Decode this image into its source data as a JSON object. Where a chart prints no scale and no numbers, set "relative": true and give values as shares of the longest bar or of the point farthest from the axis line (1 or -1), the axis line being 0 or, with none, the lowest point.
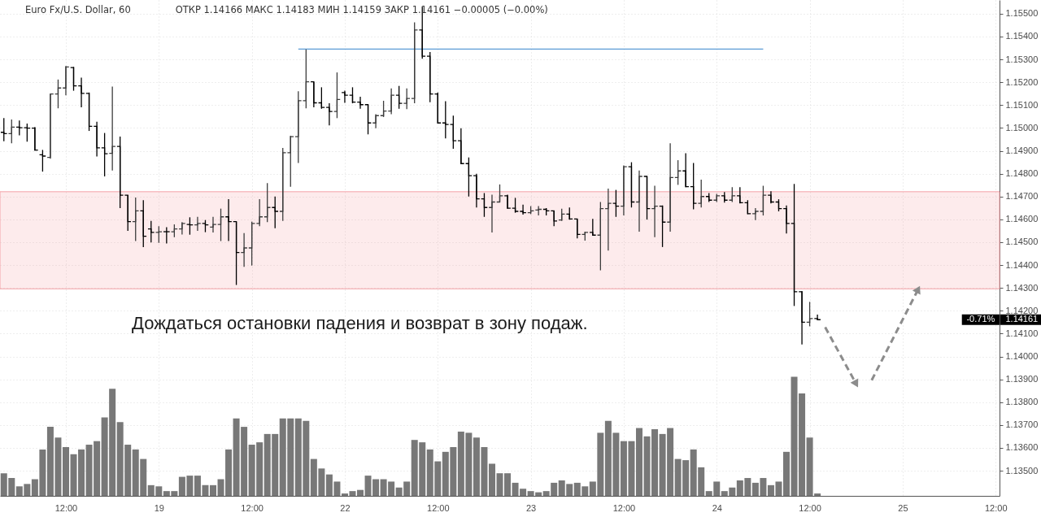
{
  "chart_data": [
    {
      "type": "candlestick",
      "title": "Euro Fx/U.S. Dollar, 60",
      "subtitle": "ОТКР 1.14166 МАКС 1.14183 МИН 1.14159 ЗАКР 1.14161 −0.00005 (−0.00%)",
      "categories": [
        null,
        null,
        null,
        null,
        null,
        null,
        null,
        null,
        "12:00",
        null,
        null,
        null,
        null,
        null,
        null,
        null,
        null,
        null,
        null,
        null,
        "19",
        null,
        null,
        null,
        null,
        null,
        null,
        null,
        null,
        null,
        null,
        null,
        "12:00",
        null,
        null,
        null,
        null,
        null,
        null,
        null,
        null,
        null,
        null,
        null,
        "22",
        null,
        null,
        null,
        null,
        null,
        null,
        null,
        null,
        null,
        null,
        null,
        "12:00",
        null,
        null,
        null,
        null,
        null,
        null,
        null,
        null,
        null,
        null,
        null,
        "23",
        null,
        null,
        null,
        null,
        null,
        null,
        null,
        null,
        null,
        null,
        null,
        "12:00",
        null,
        null,
        null,
        null,
        null,
        null,
        null,
        null,
        null,
        null,
        null,
        "24",
        null,
        null,
        null,
        null,
        null,
        null,
        null,
        null,
        null,
        null,
        null,
        "12:00",
        null,
        null,
        null,
        null,
        null,
        null,
        null,
        null,
        null,
        null,
        null,
        "25",
        null,
        null,
        null,
        null,
        null,
        null,
        null,
        null,
        null,
        null,
        null,
        "12:00"
      ],
      "ohlc": [
        [
          1.14981,
          1.15043,
          1.14942,
          1.14975
        ],
        [
          1.14975,
          1.15037,
          1.14933,
          1.15004
        ],
        [
          1.15004,
          1.15033,
          1.14968,
          1.15001
        ],
        [
          1.15001,
          1.15019,
          1.1494,
          1.14999
        ],
        [
          1.14999,
          1.15004,
          1.14901,
          1.14903
        ],
        [
          1.14883,
          1.14904,
          1.14809,
          1.14877
        ],
        [
          1.14871,
          1.15149,
          1.14865,
          1.15149
        ],
        [
          1.15149,
          1.15212,
          1.15086,
          1.15175
        ],
        [
          1.15175,
          1.15271,
          1.15143,
          1.15267
        ],
        [
          1.15264,
          1.15267,
          1.15163,
          1.15184
        ],
        [
          1.15184,
          1.1522,
          1.1509,
          1.15151
        ],
        [
          1.15151,
          1.15155,
          1.14987,
          1.15007
        ],
        [
          1.15007,
          1.15027,
          1.14875,
          1.14913
        ],
        [
          1.14913,
          1.14978,
          1.14788,
          1.14887
        ],
        [
          1.14889,
          1.15181,
          1.14814,
          1.14919
        ],
        [
          1.14919,
          1.14962,
          1.14649,
          1.14706
        ],
        [
          1.14706,
          1.14706,
          1.1455,
          1.1459
        ],
        [
          1.1459,
          1.14696,
          1.14505,
          1.14637
        ],
        [
          1.14637,
          1.14684,
          1.14479,
          1.14526
        ],
        [
          1.14558,
          1.14593,
          1.14499,
          1.14543
        ],
        [
          1.14543,
          1.1457,
          1.14497,
          1.14546
        ],
        [
          1.14546,
          1.14566,
          1.14495,
          1.14546
        ],
        [
          1.14546,
          1.14578,
          1.14522,
          1.14558
        ],
        [
          1.14558,
          1.14588,
          1.14534,
          1.14582
        ],
        [
          1.14578,
          1.14609,
          1.14533,
          1.14576
        ],
        [
          1.14576,
          1.14611,
          1.1455,
          1.14582
        ],
        [
          1.14582,
          1.14597,
          1.14544,
          1.14576
        ],
        [
          1.14566,
          1.14611,
          1.14543,
          1.14578
        ],
        [
          1.14578,
          1.14647,
          1.14505,
          1.14611
        ],
        [
          1.14611,
          1.14688,
          1.14505,
          1.1459
        ],
        [
          1.1459,
          1.1459,
          1.14313,
          1.14455
        ],
        [
          1.14455,
          1.1454,
          1.14392,
          1.14475
        ],
        [
          1.14475,
          1.1459,
          1.14398,
          1.14582
        ],
        [
          1.14582,
          1.14688,
          1.1457,
          1.14611
        ],
        [
          1.14611,
          1.14759,
          1.14588,
          1.14652
        ],
        [
          1.14652,
          1.147,
          1.14561,
          1.14635
        ],
        [
          1.14635,
          1.14913,
          1.14593,
          1.14892
        ],
        [
          1.14892,
          1.14966,
          1.14743,
          1.14962
        ],
        [
          1.14962,
          1.15161,
          1.14847,
          1.15119
        ],
        [
          1.15119,
          1.15344,
          1.15086,
          1.15202
        ],
        [
          1.15202,
          1.15202,
          1.1509,
          1.1511
        ],
        [
          1.1511,
          1.15178,
          1.15084,
          1.1509
        ],
        [
          1.1509,
          1.15108,
          1.15011,
          1.15072
        ],
        [
          1.15072,
          1.15243,
          1.15043,
          1.15125
        ],
        [
          1.15155,
          1.15163,
          1.1511,
          1.15143
        ],
        [
          1.15143,
          1.15178,
          1.15108,
          1.15113
        ],
        [
          1.15113,
          1.15137,
          1.15084,
          1.15102
        ],
        [
          1.15102,
          1.15102,
          1.14972,
          1.15022
        ],
        [
          1.15022,
          1.1506,
          1.14999,
          1.15054
        ],
        [
          1.15054,
          1.15119,
          1.15048,
          1.15074
        ],
        [
          1.15074,
          1.15173,
          1.1506,
          1.15143
        ],
        [
          1.15143,
          1.15184,
          1.15084,
          1.15108
        ],
        [
          1.15108,
          1.15173,
          1.15082,
          1.15129
        ],
        [
          1.15129,
          1.15462,
          1.15108,
          1.15429
        ],
        [
          1.15429,
          1.15531,
          1.15303,
          1.15314
        ],
        [
          1.15314,
          1.15332,
          1.15113,
          1.15149
        ],
        [
          1.15149,
          1.15155,
          1.15019,
          1.15022
        ],
        [
          1.15022,
          1.15117,
          1.14954,
          1.15015
        ],
        [
          1.15015,
          1.15054,
          1.14909,
          1.14944
        ],
        [
          1.14944,
          1.14999,
          1.14842,
          1.14844
        ],
        [
          1.14844,
          1.14871,
          1.147,
          1.14791
        ],
        [
          1.14791,
          1.148,
          1.14652,
          1.1469
        ],
        [
          1.1469,
          1.14715,
          1.14611,
          1.14652
        ],
        [
          1.14652,
          1.14708,
          1.14543,
          1.14676
        ],
        [
          1.14676,
          1.14753,
          1.14676,
          1.14703
        ],
        [
          1.14703,
          1.14708,
          1.14647,
          1.14649
        ],
        [
          1.14649,
          1.14694,
          1.14629,
          1.14635
        ],
        [
          1.14635,
          1.14664,
          1.14621,
          1.14629
        ],
        [
          1.14629,
          1.14658,
          1.14623,
          1.14637
        ],
        [
          1.14641,
          1.14658,
          1.14617,
          1.14644
        ],
        [
          1.14644,
          1.14649,
          1.14617,
          1.14637
        ],
        [
          1.14637,
          1.14637,
          1.1457,
          1.14593
        ],
        [
          1.14597,
          1.14647,
          1.14593,
          1.14623
        ],
        [
          1.14623,
          1.14652,
          1.14599,
          1.14602
        ],
        [
          1.14602,
          1.14602,
          1.14517,
          1.14534
        ],
        [
          1.14534,
          1.14546,
          1.14507,
          1.14543
        ],
        [
          1.14543,
          1.14602,
          1.14528,
          1.14531
        ],
        [
          1.14531,
          1.14676,
          1.14377,
          1.14647
        ],
        [
          1.14647,
          1.14735,
          1.14463,
          1.1467
        ],
        [
          1.1467,
          1.14729,
          1.14611,
          1.14658
        ],
        [
          1.14658,
          1.14836,
          1.14617,
          1.1483
        ],
        [
          1.1483,
          1.1485,
          1.14652,
          1.14676
        ],
        [
          1.14676,
          1.14814,
          1.14546,
          1.14788
        ],
        [
          1.14788,
          1.14788,
          1.14599,
          1.14647
        ],
        [
          1.14647,
          1.14747,
          1.14522,
          1.14658
        ],
        [
          1.14658,
          1.14661,
          1.14479,
          1.14588
        ],
        [
          1.14588,
          1.14933,
          1.14546,
          1.14783
        ],
        [
          1.14783,
          1.14859,
          1.14751,
          1.14812
        ],
        [
          1.14812,
          1.14889,
          1.14741,
          1.14743
        ],
        [
          1.14743,
          1.14847,
          1.14644,
          1.1467
        ],
        [
          1.1467,
          1.14774,
          1.14652,
          1.147
        ],
        [
          1.147,
          1.14715,
          1.14676,
          1.14684
        ],
        [
          1.14684,
          1.14712,
          1.14676,
          1.14703
        ],
        [
          1.14703,
          1.1472,
          1.14673,
          1.14684
        ],
        [
          1.14684,
          1.14741,
          1.14676,
          1.14703
        ],
        [
          1.14703,
          1.14741,
          1.1467,
          1.14673
        ],
        [
          1.14673,
          1.14684,
          1.14623,
          1.14625
        ],
        [
          1.14625,
          1.14649,
          1.14597,
          1.14635
        ],
        [
          1.14635,
          1.14747,
          1.14617,
          1.14706
        ],
        [
          1.14706,
          1.14723,
          1.1467,
          1.14676
        ],
        [
          1.14676,
          1.14688,
          1.14635,
          1.14647
        ],
        [
          1.14647,
          1.14661,
          1.14538,
          1.14582
        ],
        [
          1.14582,
          1.14755,
          1.14221,
          1.14283
        ],
        [
          1.14283,
          1.14286,
          1.14053,
          1.1415
        ],
        [
          1.1415,
          1.14239,
          1.14132,
          1.14166
        ],
        [
          1.14166,
          1.14183,
          1.14159,
          1.14161
        ],
        null,
        null,
        null,
        null,
        null,
        null,
        null,
        null,
        null,
        null,
        null,
        null,
        null,
        null,
        null,
        null,
        null,
        null,
        null,
        null,
        null,
        null,
        null
      ],
      "colors": [
        "#000000",
        "#3d3d3d",
        "#000000",
        "#000000",
        "#000000",
        "#000000",
        "#3d3d3d",
        "#3d3d3d",
        "#3d3d3d",
        "#000000",
        "#000000",
        "#000000",
        "#000000",
        "#000000",
        "#3d3d3d",
        "#000000",
        "#000000",
        "#3d3d3d",
        "#000000",
        "#000000",
        "#3d3d3d",
        "#000000",
        "#3d3d3d",
        "#3d3d3d",
        "#000000",
        "#3d3d3d",
        "#000000",
        "#3d3d3d",
        "#3d3d3d",
        "#000000",
        "#000000",
        "#3d3d3d",
        "#3d3d3d",
        "#3d3d3d",
        "#3d3d3d",
        "#000000",
        "#3d3d3d",
        "#3d3d3d",
        "#3d3d3d",
        "#3d3d3d",
        "#000000",
        "#000000",
        "#000000",
        "#3d3d3d",
        "#000000",
        "#000000",
        "#000000",
        "#000000",
        "#3d3d3d",
        "#3d3d3d",
        "#3d3d3d",
        "#000000",
        "#3d3d3d",
        "#3d3d3d",
        "#000000",
        "#000000",
        "#000000",
        "#000000",
        "#000000",
        "#000000",
        "#000000",
        "#000000",
        "#000000",
        "#3d3d3d",
        "#3d3d3d",
        "#000000",
        "#000000",
        "#000000",
        "#3d3d3d",
        "#3d3d3d",
        "#000000",
        "#000000",
        "#3d3d3d",
        "#000000",
        "#000000",
        "#3d3d3d",
        "#000000",
        "#3d3d3d",
        "#3d3d3d",
        "#000000",
        "#3d3d3d",
        "#000000",
        "#3d3d3d",
        "#000000",
        "#3d3d3d",
        "#000000",
        "#3d3d3d",
        "#3d3d3d",
        "#000000",
        "#000000",
        "#3d3d3d",
        "#000000",
        "#3d3d3d",
        "#000000",
        "#3d3d3d",
        "#000000",
        "#000000",
        "#3d3d3d",
        "#3d3d3d",
        "#000000",
        "#000000",
        "#000000",
        "#000000",
        "#000000",
        "#3d3d3d",
        "#000000",
        null,
        null,
        null,
        null,
        null,
        null,
        null,
        null,
        null,
        null,
        null,
        null,
        null,
        null,
        null,
        null,
        null,
        null,
        null,
        null,
        null,
        null,
        null
      ],
      "series": [
        {
          "type": "line",
          "color": "#5b9bd5",
          "values": [
            null,
            null,
            null,
            null,
            null,
            null,
            null,
            null,
            null,
            null,
            null,
            null,
            null,
            null,
            null,
            null,
            null,
            null,
            null,
            null,
            null,
            null,
            null,
            null,
            null,
            null,
            null,
            null,
            null,
            null,
            null,
            null,
            null,
            null,
            null,
            null,
            null,
            null,
            1.15345,
            null,
            null,
            null,
            null,
            null,
            null,
            null,
            null,
            null,
            null,
            null,
            null,
            null,
            null,
            null,
            null,
            null,
            null,
            null,
            null,
            null,
            null,
            null,
            null,
            null,
            null,
            null,
            null,
            null,
            null,
            null,
            null,
            null,
            null,
            null,
            null,
            null,
            null,
            null,
            null,
            null,
            null,
            null,
            null,
            null,
            null,
            null,
            null,
            null,
            null,
            null,
            null,
            null,
            null,
            null,
            null,
            null,
            null,
            null,
            1.15345,
            null,
            null,
            null,
            null,
            null,
            null,
            null,
            null,
            null,
            null,
            null,
            null,
            null,
            null,
            null,
            null,
            null,
            null,
            null,
            null,
            null,
            null,
            null,
            null,
            null,
            null,
            null,
            null,
            null,
            null
          ]
        },
        {
          "type": "line",
          "color": "#8c8c8c",
          "line_style": "dashed",
          "marker": "triangle",
          "values": [
            null,
            null,
            null,
            null,
            null,
            null,
            null,
            null,
            null,
            null,
            null,
            null,
            null,
            null,
            null,
            null,
            null,
            null,
            null,
            null,
            null,
            null,
            null,
            null,
            null,
            null,
            null,
            null,
            null,
            null,
            null,
            null,
            null,
            null,
            null,
            null,
            null,
            null,
            null,
            null,
            null,
            null,
            null,
            null,
            null,
            null,
            null,
            null,
            null,
            null,
            null,
            null,
            null,
            null,
            null,
            null,
            null,
            null,
            null,
            null,
            null,
            null,
            null,
            null,
            null,
            null,
            null,
            null,
            null,
            null,
            null,
            null,
            null,
            null,
            null,
            null,
            null,
            null,
            null,
            null,
            null,
            null,
            null,
            null,
            null,
            null,
            null,
            null,
            null,
            null,
            null,
            null,
            null,
            null,
            null,
            null,
            null,
            null,
            null,
            null,
            null,
            null,
            null,
            null,
            null,
            null,
            1.14128,
            null,
            null,
            null,
            1.1388,
            null,
            null,
            null,
            null,
            null,
            null,
            null,
            null,
            null,
            null,
            null,
            null,
            null,
            null,
            null,
            null,
            null,
            null
          ]
        },
        {
          "type": "line",
          "color": "#8c8c8c",
          "line_style": "dashed",
          "marker": "triangle",
          "values": [
            null,
            null,
            null,
            null,
            null,
            null,
            null,
            null,
            null,
            null,
            null,
            null,
            null,
            null,
            null,
            null,
            null,
            null,
            null,
            null,
            null,
            null,
            null,
            null,
            null,
            null,
            null,
            null,
            null,
            null,
            null,
            null,
            null,
            null,
            null,
            null,
            null,
            null,
            null,
            null,
            null,
            null,
            null,
            null,
            null,
            null,
            null,
            null,
            null,
            null,
            null,
            null,
            null,
            null,
            null,
            null,
            null,
            null,
            null,
            null,
            null,
            null,
            null,
            null,
            null,
            null,
            null,
            null,
            null,
            null,
            null,
            null,
            null,
            null,
            null,
            null,
            null,
            null,
            null,
            null,
            null,
            null,
            null,
            null,
            null,
            null,
            null,
            null,
            null,
            null,
            null,
            null,
            null,
            null,
            null,
            null,
            null,
            null,
            null,
            null,
            null,
            null,
            null,
            null,
            null,
            null,
            null,
            null,
            null,
            null,
            null,
            null,
            1.13896,
            null,
            null,
            null,
            null,
            null,
            1.14294,
            null,
            null,
            null,
            null,
            null,
            null,
            null,
            null,
            null,
            null
          ]
        }
      ],
      "ylim": [
        1.1339,
        1.1556
      ],
      "yticks": [
        {
          "value": 1.135,
          "label": "1.13500"
        },
        {
          "value": 1.136,
          "label": "1.13600"
        },
        {
          "value": 1.137,
          "label": "1.13700"
        },
        {
          "value": 1.138,
          "label": "1.13800"
        },
        {
          "value": 1.139,
          "label": "1.13900"
        },
        {
          "value": 1.14,
          "label": "1.14000"
        },
        {
          "value": 1.141,
          "label": "1.14100"
        },
        {
          "value": 1.142,
          "label": "1.14200"
        },
        {
          "value": 1.143,
          "label": "1.14300"
        },
        {
          "value": 1.144,
          "label": "1.14400"
        },
        {
          "value": 1.145,
          "label": "1.14500"
        },
        {
          "value": 1.146,
          "label": "1.14600"
        },
        {
          "value": 1.147,
          "label": "1.14700"
        },
        {
          "value": 1.148,
          "label": "1.14800"
        },
        {
          "value": 1.149,
          "label": "1.14900"
        },
        {
          "value": 1.15,
          "label": "1.15000"
        },
        {
          "value": 1.151,
          "label": "1.15100"
        },
        {
          "value": 1.152,
          "label": "1.15200"
        },
        {
          "value": 1.153,
          "label": "1.15300"
        },
        {
          "value": 1.154,
          "label": "1.15400"
        },
        {
          "value": 1.155,
          "label": "1.15500"
        }
      ],
      "grid": true,
      "bands": [
        {
          "axis": "y",
          "from": 1.14296,
          "to": 1.14721,
          "color": "#f4a3a8"
        }
      ],
      "annotations": [
        "Дождаться остановки падения и возврат в зону подаж.",
        "-0.71%",
        "1.14161"
      ]
    },
    {
      "type": "bar",
      "relative": true,
      "color": "#787878",
      "categories": [
        null,
        null,
        null,
        null,
        null,
        null,
        null,
        null,
        null,
        null,
        null,
        null,
        null,
        null,
        null,
        null,
        null,
        null,
        null,
        null,
        null,
        null,
        null,
        null,
        null,
        null,
        null,
        null,
        null,
        null,
        null,
        null,
        null,
        null,
        null,
        null,
        null,
        null,
        null,
        null,
        null,
        null,
        null,
        null,
        null,
        null,
        null,
        null,
        null,
        null,
        null,
        null,
        null,
        null,
        null,
        null,
        null,
        null,
        null,
        null,
        null,
        null,
        null,
        null,
        null,
        null,
        null,
        null,
        null,
        null,
        null,
        null,
        null,
        null,
        null,
        null,
        null,
        null,
        null,
        null,
        null,
        null,
        null,
        null,
        null,
        null,
        null,
        null,
        null,
        null,
        null,
        null,
        null,
        null,
        null,
        null,
        null,
        null,
        null,
        null,
        null,
        null,
        null,
        null,
        null,
        null,
        null,
        null,
        null,
        null,
        null,
        null,
        null,
        null,
        null,
        null,
        null,
        null,
        null,
        null,
        null,
        null,
        null,
        null,
        null,
        null,
        null,
        null,
        null
      ],
      "values": [
        0.19,
        0.15,
        0.08,
        0.1,
        0.14,
        0.39,
        0.58,
        0.49,
        0.41,
        0.35,
        0.39,
        0.43,
        0.46,
        0.66,
        0.9,
        0.62,
        0.43,
        0.39,
        0.31,
        0.09,
        0.08,
        0.04,
        0.04,
        0.16,
        0.17,
        0.17,
        0.09,
        0.09,
        0.14,
        0.39,
        0.65,
        0.58,
        0.43,
        0.45,
        0.52,
        0.52,
        0.65,
        0.65,
        0.65,
        0.63,
        0.31,
        0.23,
        0.18,
        0.12,
        0.02,
        0.04,
        0.05,
        0.17,
        0.14,
        0.14,
        0.12,
        0.07,
        0.12,
        0.47,
        0.45,
        0.39,
        0.29,
        0.37,
        0.41,
        0.54,
        0.53,
        0.49,
        0.41,
        0.27,
        0.19,
        0.19,
        0.11,
        0.06,
        0.04,
        0.03,
        0.04,
        0.11,
        0.13,
        0.1,
        0.11,
        0.08,
        0.12,
        0.53,
        0.63,
        0.53,
        0.46,
        0.46,
        0.57,
        0.5,
        0.56,
        0.52,
        0.57,
        0.31,
        0.3,
        0.39,
        0.24,
        0.04,
        0.12,
        0.04,
        0.07,
        0.13,
        0.15,
        0.11,
        0.15,
        0.09,
        0.12,
        0.37,
        1,
        0.86,
        0.49,
        0.02,
        null,
        null,
        null,
        null,
        null,
        null,
        null,
        null,
        null,
        null,
        null,
        null,
        null,
        null,
        null,
        null,
        null,
        null,
        null,
        null,
        null,
        null,
        null
      ]
    }
  ]
}
